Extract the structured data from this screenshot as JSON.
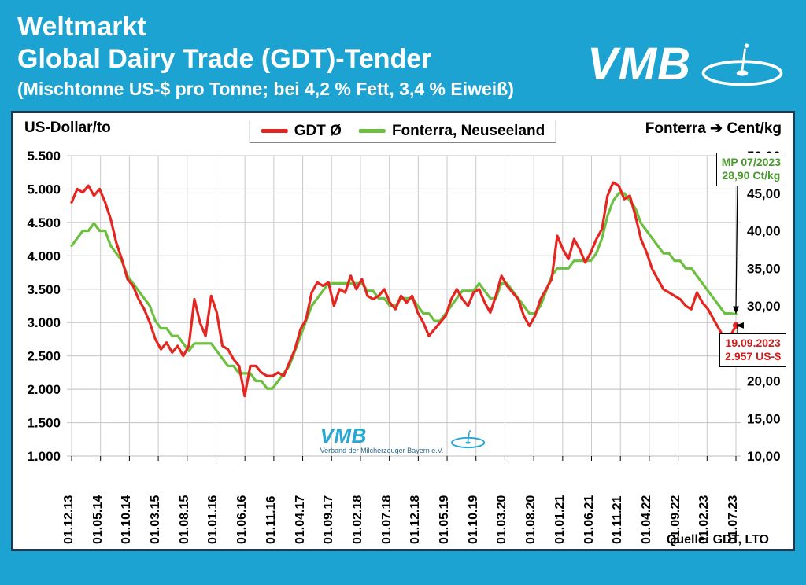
{
  "header": {
    "title1": "Weltmarkt",
    "title2": "Global Dairy Trade (GDT)-Tender",
    "subtitle": "(Mischtonne US-$ pro Tonne; bei 4,2 % Fett, 3,4 % Eiweiß)",
    "logo_text": "VMB"
  },
  "colors": {
    "bg": "#1da3d1",
    "frame_border": "#1e3a52",
    "grid": "#c9c9c9",
    "gdt": "#e52620",
    "fonterra": "#6cbf3f",
    "text": "#000000"
  },
  "legend": {
    "items": [
      {
        "label": "GDT Ø",
        "color": "#e52620"
      },
      {
        "label": "Fonterra, Neuseeland",
        "color": "#6cbf3f"
      }
    ]
  },
  "axes": {
    "y_left": {
      "title": "US-Dollar/to",
      "min": 1000,
      "max": 5500,
      "step": 500,
      "ticks": [
        "1.000",
        "1.500",
        "2.000",
        "2.500",
        "3.000",
        "3.500",
        "4.000",
        "4.500",
        "5.000",
        "5.500"
      ],
      "fontsize": 17
    },
    "y_right": {
      "title_prefix": "Fonterra",
      "title_arrow": "➔",
      "title_unit": "Cent/kg",
      "min": 10,
      "max": 50,
      "step": 5,
      "ticks": [
        "10,00",
        "15,00",
        "20,00",
        "25,00",
        "30,00",
        "35,00",
        "40,00",
        "45,00",
        "50,00"
      ],
      "fontsize": 17
    },
    "x": {
      "labels": [
        "01.12.13",
        "01.05.14",
        "01.10.14",
        "01.03.15",
        "01.08.15",
        "01.01.16",
        "01.06.16",
        "01.11.16",
        "01.04.17",
        "01.09.17",
        "01.02.18",
        "01.07.18",
        "01.12.18",
        "01.05.19",
        "01.10.19",
        "01.03.20",
        "01.08.20",
        "01.01.21",
        "01.06.21",
        "01.11.21",
        "01.04.22",
        "01.09.22",
        "01.02.23",
        "01.07.23"
      ],
      "fontsize": 16
    }
  },
  "annotations": {
    "top_box": {
      "line1": "MP 07/2023",
      "line2": "28,90 Ct/kg",
      "color": "#4a9a2e"
    },
    "bottom_box": {
      "line1": "19.09.2023",
      "line2": "2.957 US-$",
      "color": "#d01c1c"
    }
  },
  "source": "Quelle: GDT, LTO",
  "watermark": {
    "text": "VMB",
    "sub": "Verband der Milcherzeuger Bayern e.V."
  },
  "series": {
    "line_width": 3.2,
    "gdt": {
      "color": "#e52620",
      "y": [
        4800,
        5000,
        4950,
        5050,
        4900,
        5000,
        4800,
        4550,
        4200,
        3950,
        3650,
        3550,
        3350,
        3200,
        3000,
        2750,
        2600,
        2700,
        2550,
        2650,
        2500,
        2650,
        3350,
        3000,
        2800,
        3400,
        3150,
        2650,
        2600,
        2450,
        2350,
        1900,
        2350,
        2350,
        2250,
        2200,
        2200,
        2250,
        2200,
        2400,
        2600,
        2900,
        3050,
        3450,
        3600,
        3550,
        3600,
        3250,
        3500,
        3450,
        3700,
        3500,
        3650,
        3400,
        3350,
        3400,
        3500,
        3300,
        3200,
        3400,
        3300,
        3400,
        3150,
        3000,
        2800,
        2900,
        3000,
        3100,
        3350,
        3500,
        3350,
        3250,
        3450,
        3500,
        3300,
        3150,
        3400,
        3700,
        3550,
        3450,
        3350,
        3100,
        2950,
        3100,
        3350,
        3500,
        3650,
        4300,
        4100,
        3950,
        4250,
        4100,
        3900,
        4050,
        4250,
        4400,
        4900,
        5100,
        5050,
        4850,
        4900,
        4600,
        4250,
        4050,
        3800,
        3650,
        3500,
        3450,
        3400,
        3350,
        3250,
        3200,
        3450,
        3300,
        3200,
        3050,
        2900,
        2750,
        2800,
        2957
      ]
    },
    "fonterra": {
      "color": "#6cbf3f",
      "y": [
        38,
        39,
        40,
        40,
        41,
        40,
        40,
        38,
        37,
        36,
        34,
        33,
        32,
        31,
        30,
        28,
        27,
        27,
        26,
        26,
        25,
        24,
        25,
        25,
        25,
        25,
        24,
        23,
        22,
        22,
        21,
        21,
        21,
        20,
        20,
        19,
        19,
        20,
        21,
        22,
        24,
        26,
        28,
        30,
        31,
        32,
        33,
        33,
        33,
        33,
        33,
        33,
        33,
        32,
        32,
        31,
        31,
        30,
        30,
        31,
        31,
        31,
        30,
        29,
        29,
        28,
        28,
        29,
        30,
        31,
        32,
        32,
        32,
        33,
        32,
        31,
        31,
        33,
        33,
        32,
        31,
        30,
        29,
        29,
        30,
        32,
        34,
        35,
        35,
        35,
        36,
        36,
        36,
        36,
        37,
        39,
        42,
        44,
        45,
        45,
        44,
        43,
        41,
        40,
        39,
        38,
        37,
        37,
        36,
        36,
        35,
        35,
        34,
        33,
        32,
        31,
        30,
        29,
        29,
        28.9
      ]
    }
  },
  "chart_style": {
    "title_fontsize": 34,
    "subtitle_fontsize": 23,
    "legend_fontsize": 19,
    "line_width": 3.2
  }
}
